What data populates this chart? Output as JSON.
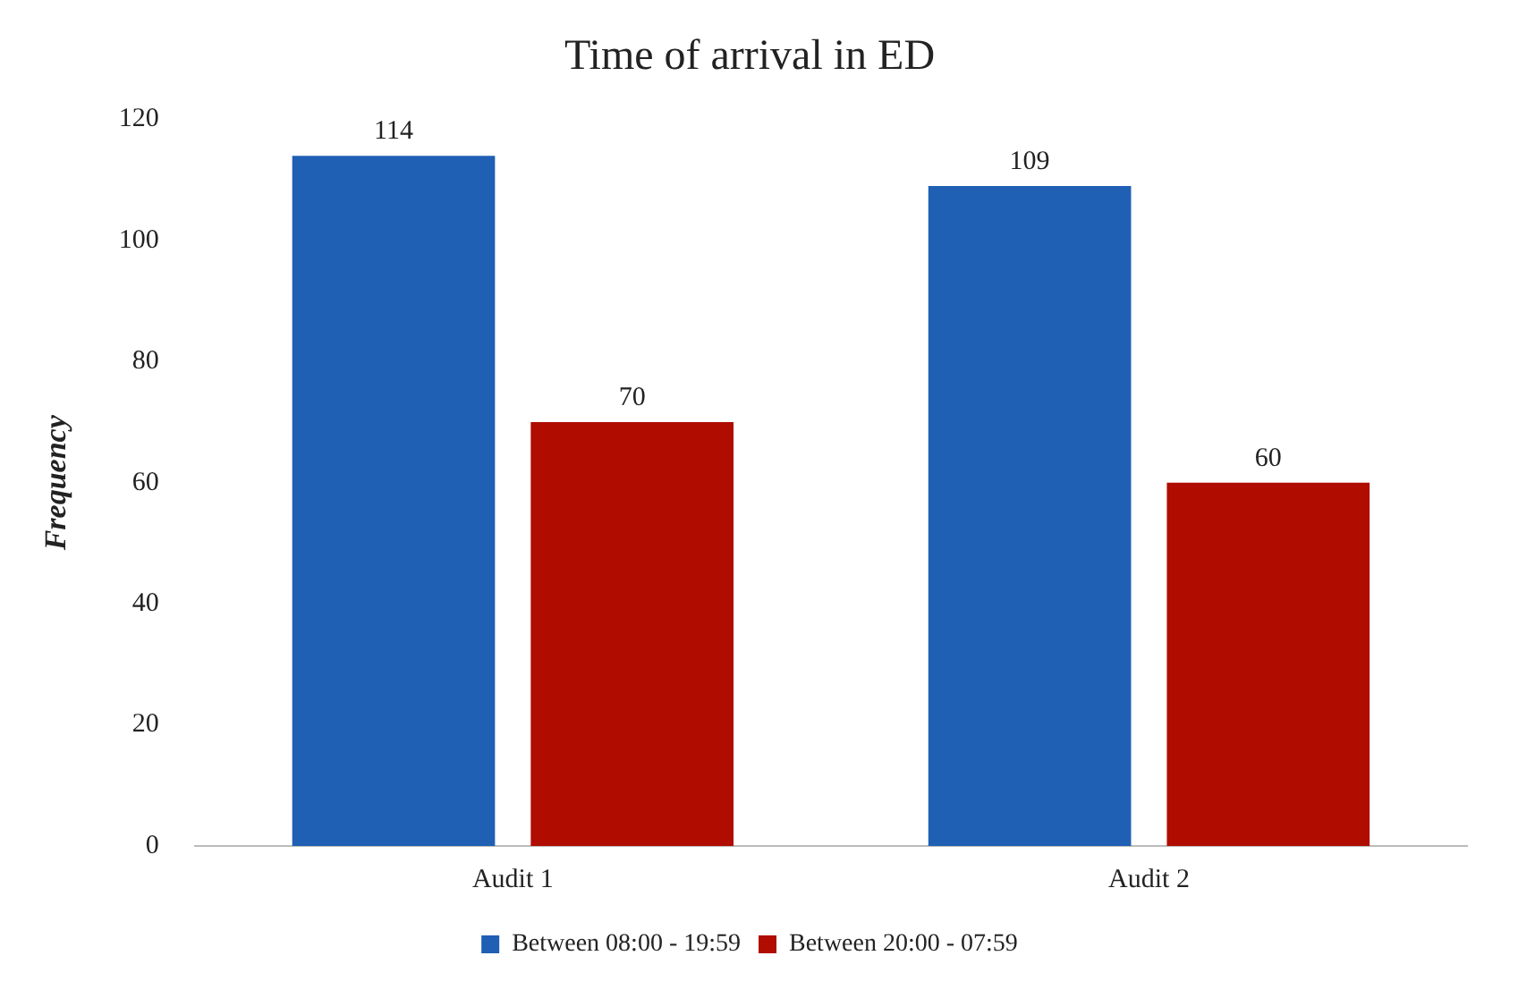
{
  "chart_data": {
    "type": "bar",
    "title": "Time of arrival in ED",
    "ylabel": "Frequency",
    "categories": [
      "Audit 1",
      "Audit 2"
    ],
    "series": [
      {
        "name": "Between 08:00 - 19:59",
        "color": "#1f5fb4",
        "values": [
          114,
          109
        ]
      },
      {
        "name": "Between 20:00 - 07:59",
        "color": "#b00c00",
        "values": [
          70,
          60
        ]
      }
    ],
    "ylim": [
      0,
      120
    ],
    "yticks": [
      0,
      20,
      40,
      60,
      80,
      100,
      120
    ],
    "grid": false,
    "legend": "bottom",
    "data_labels": true
  }
}
